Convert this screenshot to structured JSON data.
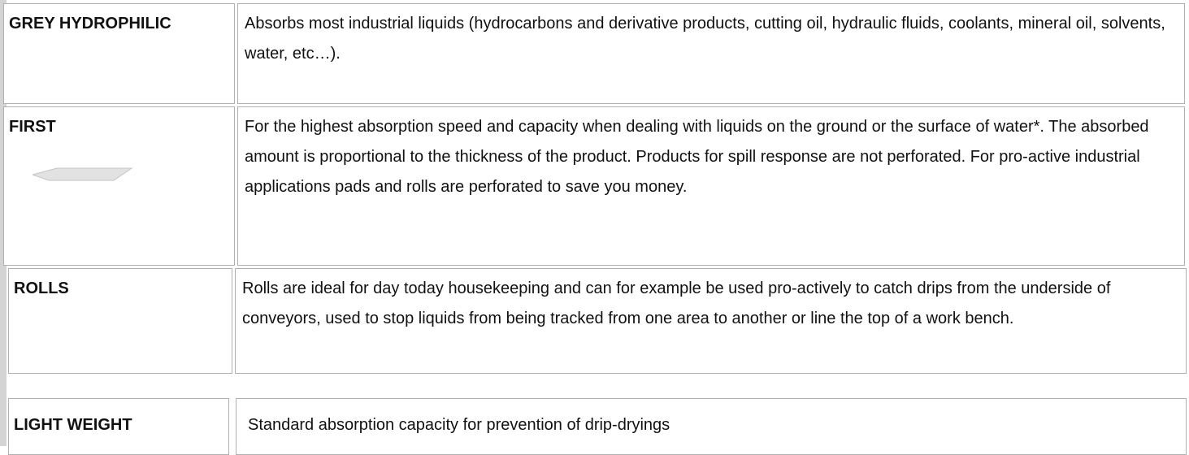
{
  "table": {
    "rows": [
      {
        "label": "GREY HYDROPHILIC",
        "text": "Absorbs most industrial liquids (hydrocarbons and derivative products, cutting oil, hydraulic fluids, coolants, mineral oil, solvents, water, etc…)."
      },
      {
        "label": "FIRST",
        "text": "For the highest absorption speed and capacity when dealing with liquids on the ground or the surface of water*. The absorbed amount is proportional to the thickness of the product. Products for spill response are not perforated. For pro-active industrial applications pads and rolls are perforated to save you money."
      },
      {
        "label": "ROLLS",
        "text": "Rolls are ideal for day today housekeeping and can for example be used pro-actively to catch drips from the underside of conveyors, used to stop liquids from being tracked from one area to another or line the top of a work bench."
      },
      {
        "label": "LIGHT WEIGHT",
        "text": "Standard absorption capacity for prevention of drip-dryings"
      }
    ]
  }
}
